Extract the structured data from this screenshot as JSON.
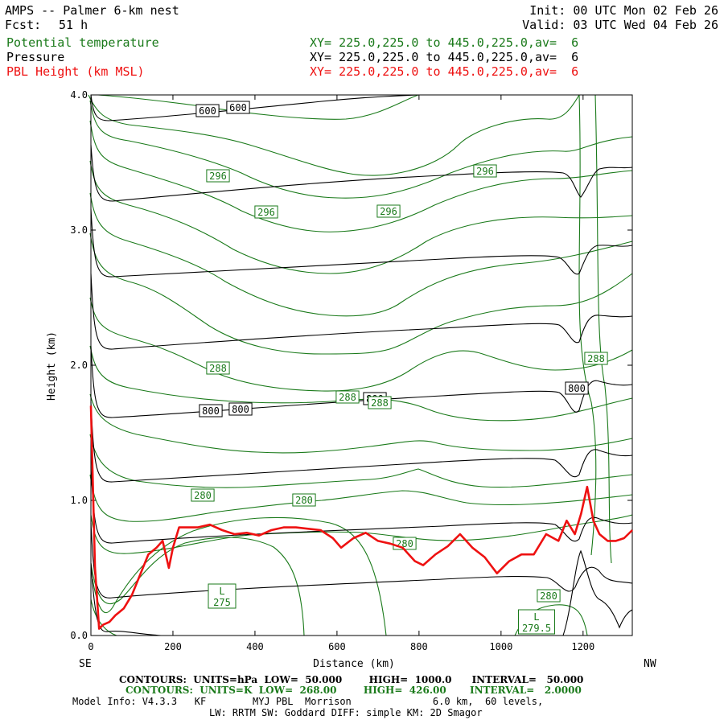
{
  "header": {
    "title": "AMPS -- Palmer 6-km nest",
    "fcst_label": "Fcst:",
    "fcst_value": "51 h",
    "init": "Init: 00 UTC Mon 02 Feb 26",
    "valid": "Valid: 03 UTC Wed 04 Feb 26"
  },
  "fields": [
    {
      "name": "Potential temperature",
      "xy": "XY= 225.0,225.0 to 445.0,225.0,av=  6",
      "color": "#1a7a1a"
    },
    {
      "name": "Pressure",
      "xy": "XY= 225.0,225.0 to 445.0,225.0,av=  6",
      "color": "#000000"
    },
    {
      "name": "PBL Height (km MSL)",
      "xy": "XY= 225.0,225.0 to 445.0,225.0,av=  6",
      "color": "#ee1111"
    }
  ],
  "footer": {
    "line1": "CONTOURS:  UNITS=hPa  LOW=  50.000        HIGH=  1000.0      INTERVAL=   50.000",
    "line2": "CONTOURS:  UNITS=K  LOW=  268.00        HIGH=  426.00       INTERVAL=   2.0000",
    "line3": "Model Info: V4.3.3   KF        MYJ PBL  Morrison              6.0 km,  60 levels,",
    "line4": "LW: RRTM SW: Goddard DIFF: simple KM: 2D Smagor"
  },
  "chart_data": {
    "type": "line",
    "xlabel": "Distance (km)",
    "ylabel": "Height (km)",
    "xlim": [
      0,
      1320
    ],
    "ylim": [
      0,
      4.0
    ],
    "x_ticks": [
      0,
      200,
      400,
      600,
      800,
      1000,
      1200
    ],
    "y_ticks": [
      0.0,
      1.0,
      2.0,
      3.0,
      4.0
    ],
    "left_end_label": "SE",
    "right_end_label": "NW",
    "pbl_height": {
      "x": [
        0,
        10,
        20,
        30,
        45,
        60,
        80,
        100,
        120,
        140,
        160,
        175,
        190,
        200,
        215,
        230,
        260,
        290,
        320,
        350,
        380,
        410,
        440,
        470,
        500,
        530,
        560,
        590,
        610,
        640,
        670,
        700,
        730,
        760,
        790,
        810,
        840,
        870,
        900,
        930,
        960,
        990,
        1020,
        1050,
        1080,
        1110,
        1140,
        1160,
        1180,
        1195,
        1210,
        1225,
        1240,
        1260,
        1280,
        1300,
        1320
      ],
      "y": [
        1.7,
        0.5,
        0.05,
        0.08,
        0.1,
        0.15,
        0.2,
        0.3,
        0.45,
        0.6,
        0.65,
        0.7,
        0.5,
        0.65,
        0.8,
        0.8,
        0.8,
        0.82,
        0.78,
        0.75,
        0.76,
        0.74,
        0.78,
        0.8,
        0.8,
        0.79,
        0.78,
        0.72,
        0.65,
        0.72,
        0.76,
        0.7,
        0.68,
        0.65,
        0.55,
        0.52,
        0.6,
        0.66,
        0.75,
        0.65,
        0.58,
        0.46,
        0.55,
        0.6,
        0.6,
        0.75,
        0.7,
        0.85,
        0.75,
        0.9,
        1.1,
        0.85,
        0.75,
        0.7,
        0.7,
        0.72,
        0.78
      ]
    },
    "pressure_label_values": [
      "600",
      "600",
      "800",
      "800",
      "800",
      "800"
    ],
    "theta_label_values": [
      "296",
      "296",
      "296",
      "296",
      "288",
      "288",
      "288",
      "288",
      "280",
      "280",
      "280",
      "280"
    ],
    "lows": [
      {
        "letter": "L",
        "value": "275"
      },
      {
        "letter": "L",
        "value": "279.5"
      }
    ]
  }
}
